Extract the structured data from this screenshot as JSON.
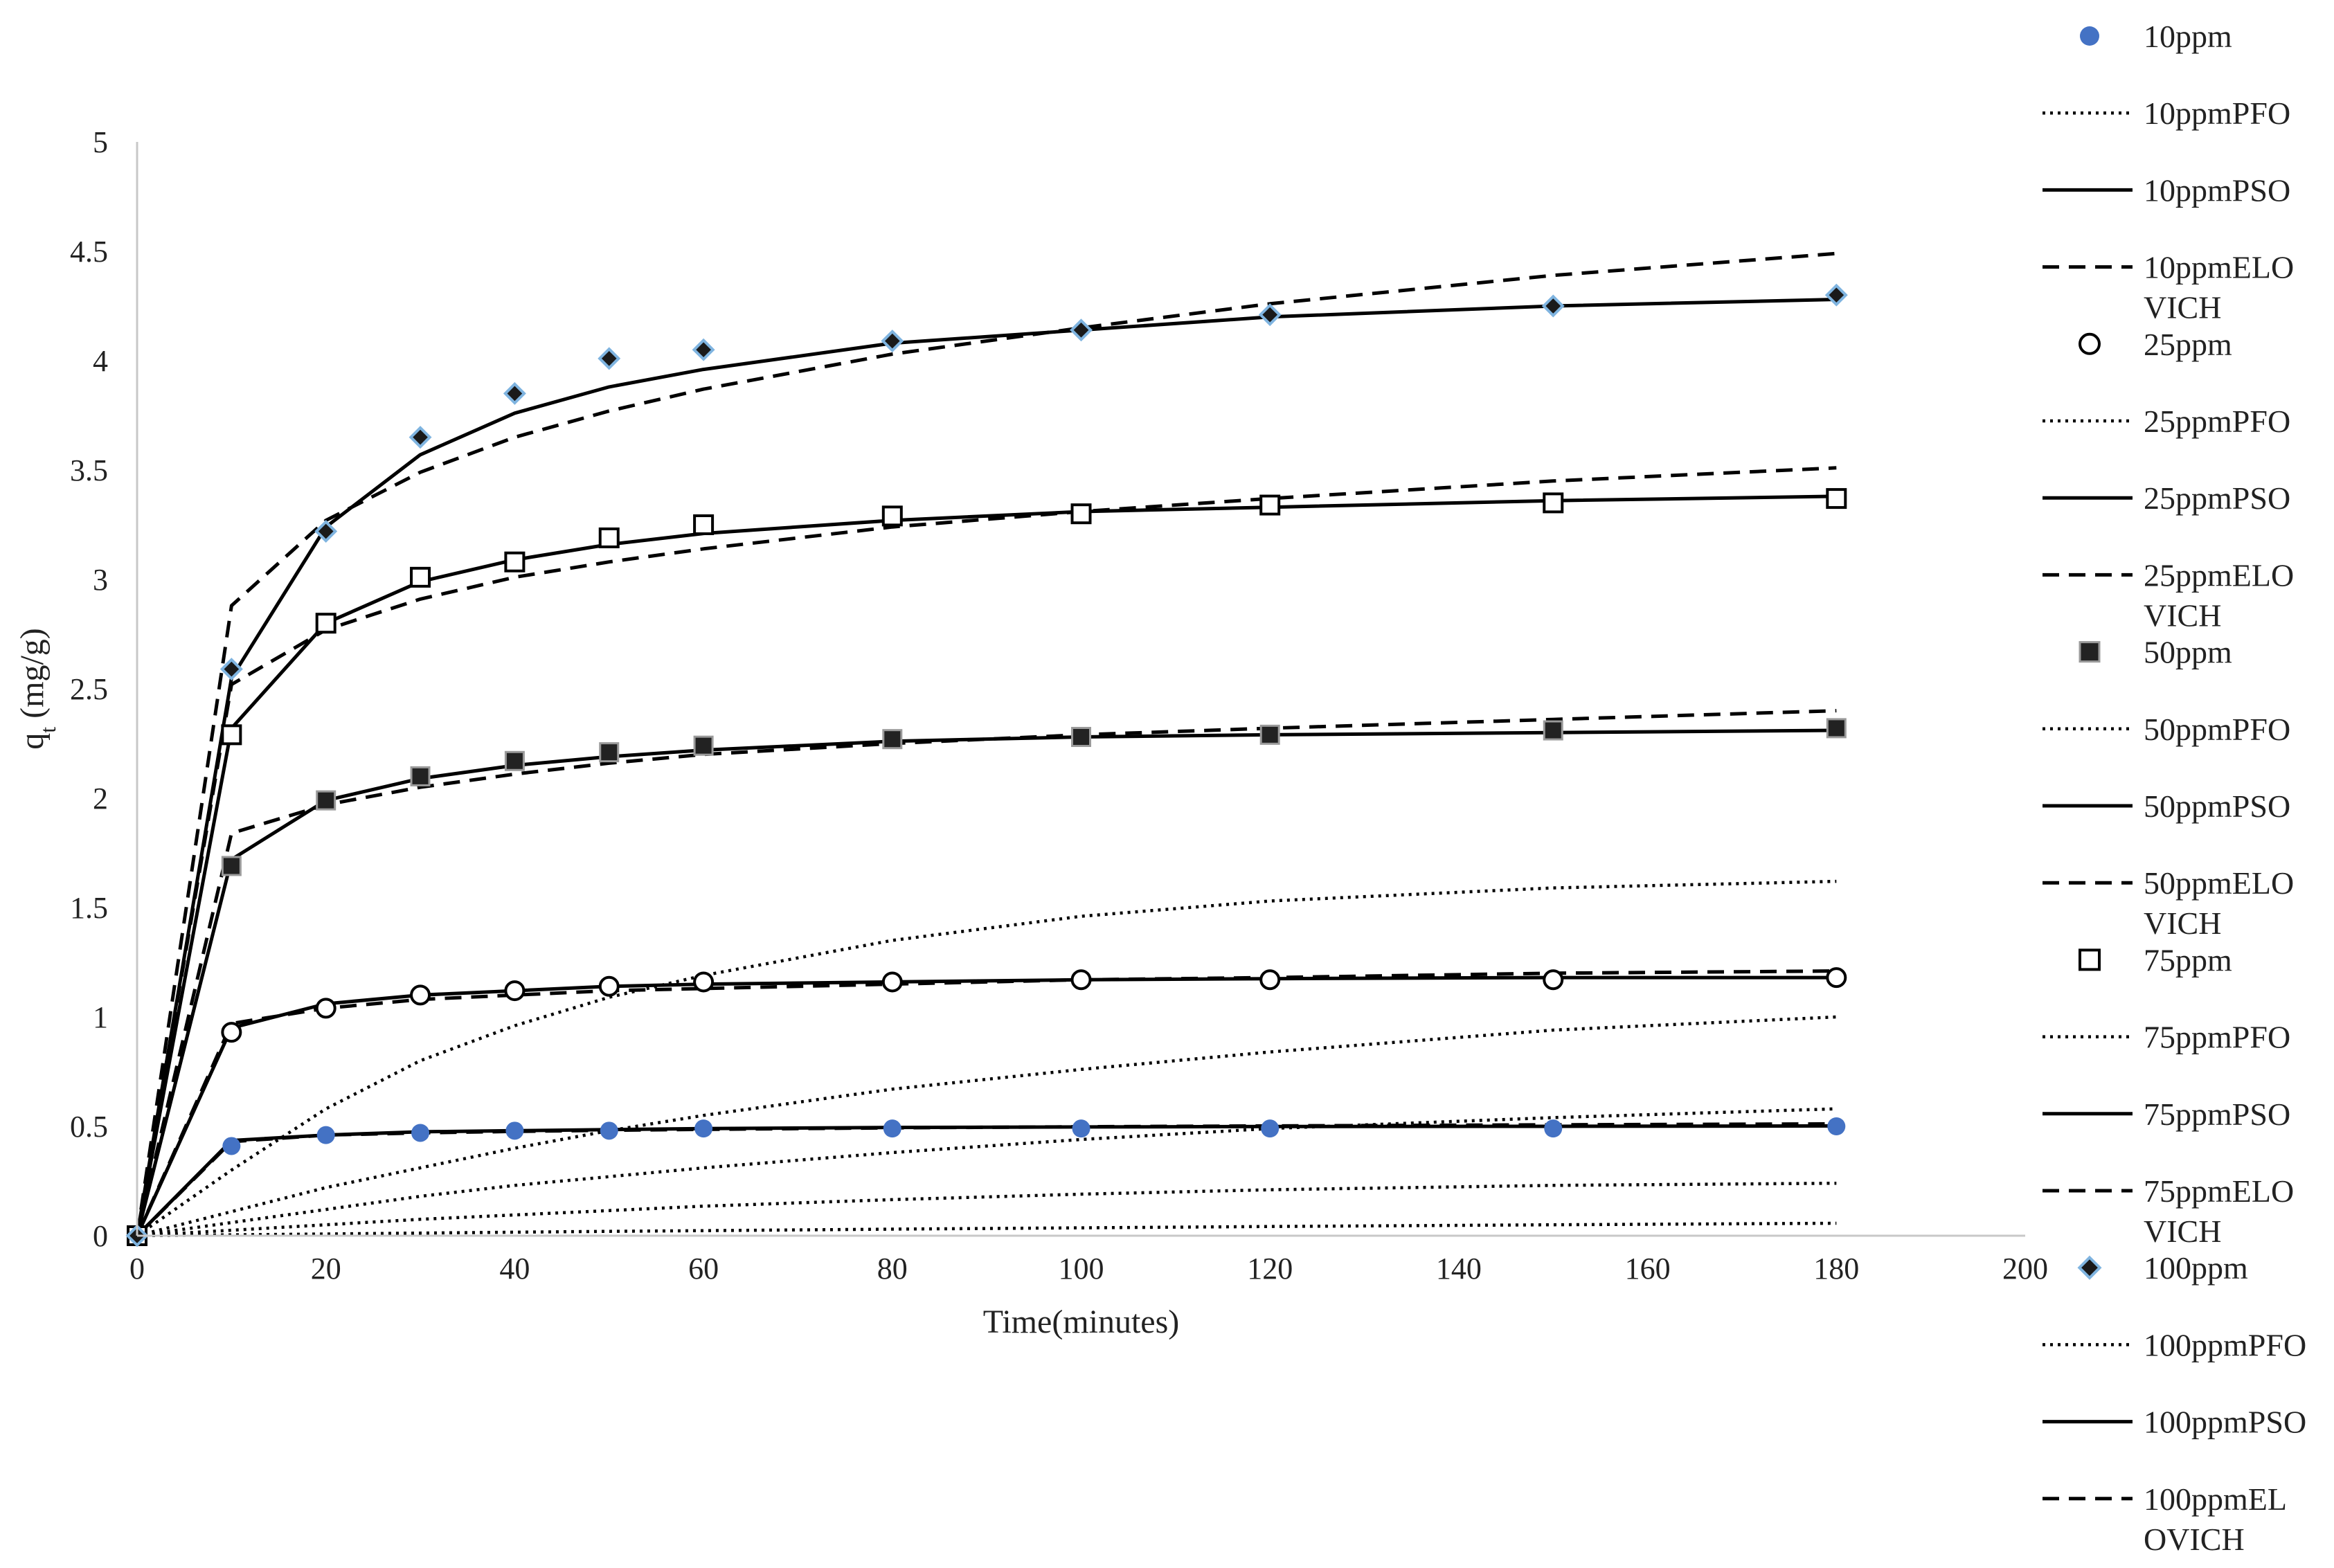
{
  "chart_data": {
    "type": "line",
    "xlabel": "Time(minutes)",
    "ylabel": {
      "main": "q",
      "sub": "t",
      "unit": " (mg/g)"
    },
    "xlim": [
      0,
      200
    ],
    "ylim": [
      0,
      5
    ],
    "x_ticks": [
      "0",
      "20",
      "40",
      "60",
      "80",
      "100",
      "120",
      "140",
      "160",
      "180",
      "200"
    ],
    "y_ticks": [
      "0",
      "0.5",
      "1",
      "1.5",
      "2",
      "2.5",
      "3",
      "3.5",
      "4",
      "4.5",
      "5"
    ],
    "grid": false,
    "legend_position": "right",
    "x": [
      0,
      10,
      20,
      30,
      40,
      50,
      60,
      80,
      100,
      120,
      150,
      180
    ],
    "groups": [
      {
        "key": "c10",
        "marker": "circle-filled",
        "marker_color": "#4472C4",
        "experimental": {
          "name": "10ppm",
          "values": [
            0,
            0.41,
            0.46,
            0.47,
            0.48,
            0.48,
            0.49,
            0.49,
            0.49,
            0.49,
            0.49,
            0.5
          ]
        },
        "pfo": {
          "name": "10ppmPFO",
          "values": [
            0,
            0.004,
            0.008,
            0.012,
            0.016,
            0.02,
            0.023,
            0.03,
            0.036,
            0.042,
            0.05,
            0.057
          ]
        },
        "pso": {
          "name": "10ppmPSO",
          "values": [
            0,
            0.435,
            0.46,
            0.475,
            0.48,
            0.485,
            0.49,
            0.495,
            0.497,
            0.499,
            0.5,
            0.502
          ]
        },
        "elovich": {
          "name": "10ppmELO\nVICH",
          "values": [
            0,
            0.43,
            0.46,
            0.47,
            0.477,
            0.482,
            0.486,
            0.493,
            0.498,
            0.502,
            0.507,
            0.511
          ]
        }
      },
      {
        "key": "c25",
        "marker": "circle-open",
        "marker_color": "#000000",
        "experimental": {
          "name": "25ppm",
          "values": [
            0,
            0.93,
            1.04,
            1.1,
            1.12,
            1.14,
            1.16,
            1.16,
            1.17,
            1.17,
            1.17,
            1.18
          ]
        },
        "pfo": {
          "name": "25ppmPFO",
          "values": [
            0,
            0.025,
            0.05,
            0.075,
            0.095,
            0.115,
            0.135,
            0.165,
            0.19,
            0.21,
            0.23,
            0.24
          ]
        },
        "pso": {
          "name": "25ppmPSO",
          "values": [
            0,
            0.95,
            1.06,
            1.1,
            1.12,
            1.14,
            1.15,
            1.16,
            1.17,
            1.175,
            1.18,
            1.18
          ]
        },
        "elovich": {
          "name": "25ppmELO\nVICH",
          "values": [
            0,
            0.97,
            1.04,
            1.08,
            1.1,
            1.12,
            1.13,
            1.15,
            1.17,
            1.18,
            1.2,
            1.21
          ]
        }
      },
      {
        "key": "c50",
        "marker": "square-filled",
        "marker_color": "#222222",
        "experimental": {
          "name": "50ppm",
          "values": [
            0,
            1.69,
            1.99,
            2.1,
            2.17,
            2.21,
            2.24,
            2.27,
            2.28,
            2.29,
            2.31,
            2.32
          ]
        },
        "pfo": {
          "name": "50ppmPFO",
          "values": [
            0,
            0.06,
            0.12,
            0.18,
            0.23,
            0.27,
            0.31,
            0.38,
            0.44,
            0.49,
            0.54,
            0.58
          ]
        },
        "pso": {
          "name": "50ppmPSO",
          "values": [
            0,
            1.72,
            1.99,
            2.09,
            2.15,
            2.19,
            2.22,
            2.26,
            2.28,
            2.29,
            2.3,
            2.31
          ]
        },
        "elovich": {
          "name": "50ppmELO\nVICH",
          "values": [
            0,
            1.84,
            1.97,
            2.05,
            2.11,
            2.16,
            2.2,
            2.25,
            2.29,
            2.32,
            2.36,
            2.4
          ]
        }
      },
      {
        "key": "c75",
        "marker": "square-open",
        "marker_color": "#000000",
        "experimental": {
          "name": "75ppm",
          "values": [
            0,
            2.29,
            2.8,
            3.01,
            3.08,
            3.19,
            3.25,
            3.29,
            3.3,
            3.34,
            3.35,
            3.37
          ]
        },
        "pfo": {
          "name": "75ppmPFO",
          "values": [
            0,
            0.11,
            0.22,
            0.31,
            0.4,
            0.48,
            0.55,
            0.67,
            0.76,
            0.84,
            0.94,
            1.0
          ]
        },
        "pso": {
          "name": "75ppmPSO",
          "values": [
            0,
            2.32,
            2.8,
            2.99,
            3.09,
            3.16,
            3.21,
            3.27,
            3.31,
            3.33,
            3.36,
            3.38
          ]
        },
        "elovich": {
          "name": "75ppmELO\nVICH",
          "values": [
            0,
            2.52,
            2.77,
            2.91,
            3.01,
            3.08,
            3.14,
            3.24,
            3.31,
            3.37,
            3.45,
            3.51
          ]
        }
      },
      {
        "key": "c100",
        "marker": "diamond",
        "marker_color": "#1a1a1a",
        "marker_edge": "#7fb4e0",
        "experimental": {
          "name": "100ppm",
          "values": [
            0,
            2.59,
            3.22,
            3.65,
            3.85,
            4.01,
            4.05,
            4.09,
            4.14,
            4.21,
            4.25,
            4.3
          ]
        },
        "pfo": {
          "name": "100ppmPFO",
          "values": [
            0,
            0.3,
            0.58,
            0.8,
            0.96,
            1.09,
            1.19,
            1.35,
            1.46,
            1.53,
            1.59,
            1.62
          ]
        },
        "pso": {
          "name": "100ppmPSO",
          "values": [
            0,
            2.55,
            3.24,
            3.57,
            3.76,
            3.88,
            3.96,
            4.08,
            4.14,
            4.2,
            4.25,
            4.28
          ]
        },
        "elovich": {
          "name": "100ppmEL\nOVICH",
          "values": [
            0,
            2.88,
            3.27,
            3.49,
            3.65,
            3.77,
            3.87,
            4.03,
            4.15,
            4.26,
            4.39,
            4.49
          ]
        }
      }
    ]
  }
}
